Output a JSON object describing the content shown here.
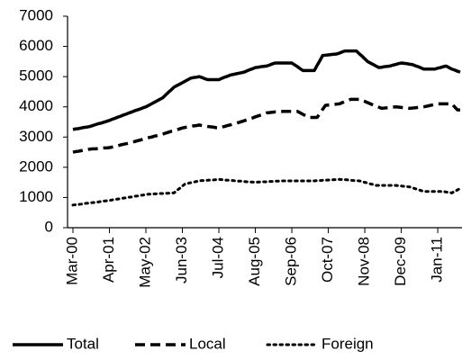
{
  "chart_data": {
    "type": "line",
    "categories": [
      "Mar-00",
      null,
      null,
      null,
      null,
      null,
      null,
      null,
      null,
      null,
      null,
      null,
      null,
      "Apr-01",
      null,
      null,
      null,
      null,
      null,
      null,
      null,
      null,
      null,
      null,
      null,
      null,
      "May-02",
      null,
      null,
      null,
      null,
      null,
      null,
      null,
      null,
      null,
      null,
      null,
      null,
      "Jun-03",
      null,
      null,
      null,
      null,
      null,
      null,
      null,
      null,
      null,
      null,
      null,
      null,
      "Jul-04",
      null,
      null,
      null,
      null,
      null,
      null,
      null,
      null,
      null,
      null,
      null,
      null,
      "Aug-05",
      null,
      null,
      null,
      null,
      null,
      null,
      null,
      null,
      null,
      null,
      null,
      null,
      "Sep-06",
      null,
      null,
      null,
      null,
      null,
      null,
      null,
      null,
      null,
      null,
      null,
      null,
      "Oct-07",
      null,
      null,
      null,
      null,
      null,
      null,
      null,
      null,
      null,
      null,
      null,
      null,
      "Nov-08",
      null,
      null,
      null,
      null,
      null,
      null,
      null,
      null,
      null,
      null,
      null,
      null,
      "Dec-09",
      null,
      null,
      null,
      null,
      null,
      null,
      null,
      null,
      null,
      null,
      null,
      null,
      "Jan-11",
      null,
      null,
      null,
      null,
      null,
      null,
      null,
      null
    ],
    "series": [
      {
        "name": "Total",
        "color": "#000000",
        "style": "solid",
        "values": [
          3250,
          3270,
          3280,
          3300,
          3320,
          3330,
          3350,
          3380,
          3410,
          3440,
          3460,
          3490,
          3520,
          3550,
          3590,
          3620,
          3660,
          3690,
          3730,
          3760,
          3800,
          3830,
          3870,
          3900,
          3930,
          3970,
          4000,
          4050,
          4100,
          4150,
          4200,
          4250,
          4300,
          4390,
          4480,
          4560,
          4650,
          4700,
          4750,
          4800,
          4850,
          4900,
          4950,
          4970,
          4980,
          5000,
          4970,
          4930,
          4900,
          4900,
          4900,
          4900,
          4900,
          4940,
          4980,
          5010,
          5050,
          5070,
          5090,
          5110,
          5130,
          5150,
          5190,
          5230,
          5260,
          5300,
          5310,
          5330,
          5340,
          5350,
          5380,
          5420,
          5450,
          5450,
          5450,
          5450,
          5450,
          5450,
          5450,
          5390,
          5330,
          5260,
          5200,
          5200,
          5200,
          5200,
          5200,
          5370,
          5530,
          5700,
          5710,
          5720,
          5730,
          5740,
          5750,
          5780,
          5820,
          5850,
          5850,
          5850,
          5850,
          5850,
          5760,
          5680,
          5590,
          5500,
          5450,
          5400,
          5350,
          5300,
          5310,
          5330,
          5340,
          5350,
          5380,
          5400,
          5430,
          5450,
          5440,
          5430,
          5410,
          5400,
          5360,
          5330,
          5290,
          5250,
          5250,
          5250,
          5250,
          5250,
          5280,
          5300,
          5330,
          5350,
          5300,
          5250,
          5220,
          5180,
          5150
        ]
      },
      {
        "name": "Local",
        "color": "#000000",
        "style": "dashed",
        "values": [
          2500,
          2520,
          2530,
          2550,
          2570,
          2580,
          2600,
          2610,
          2610,
          2620,
          2630,
          2640,
          2640,
          2650,
          2670,
          2690,
          2710,
          2740,
          2760,
          2780,
          2800,
          2830,
          2850,
          2880,
          2900,
          2930,
          2950,
          2980,
          3000,
          3030,
          3050,
          3080,
          3100,
          3130,
          3160,
          3190,
          3210,
          3240,
          3270,
          3300,
          3320,
          3330,
          3350,
          3370,
          3380,
          3400,
          3380,
          3370,
          3350,
          3340,
          3330,
          3310,
          3300,
          3330,
          3350,
          3380,
          3400,
          3430,
          3450,
          3480,
          3510,
          3540,
          3570,
          3600,
          3630,
          3670,
          3700,
          3730,
          3770,
          3800,
          3810,
          3820,
          3830,
          3830,
          3840,
          3850,
          3850,
          3850,
          3850,
          3850,
          3850,
          3800,
          3750,
          3700,
          3650,
          3650,
          3650,
          3650,
          3780,
          3920,
          4050,
          4060,
          4070,
          4080,
          4090,
          4100,
          4140,
          4180,
          4210,
          4250,
          4250,
          4250,
          4250,
          4210,
          4180,
          4140,
          4100,
          4060,
          4030,
          3990,
          3950,
          3960,
          3970,
          3980,
          3990,
          4000,
          3990,
          3980,
          3970,
          3960,
          3950,
          3960,
          3970,
          3980,
          3990,
          4000,
          4020,
          4040,
          4060,
          4080,
          4100,
          4100,
          4100,
          4100,
          4100,
          4100,
          4000,
          3900,
          3900
        ]
      },
      {
        "name": "Foreign",
        "color": "#000000",
        "style": "dotted",
        "values": [
          750,
          760,
          770,
          780,
          800,
          810,
          820,
          830,
          840,
          850,
          870,
          880,
          890,
          900,
          920,
          930,
          950,
          960,
          980,
          990,
          1010,
          1020,
          1040,
          1050,
          1070,
          1080,
          1100,
          1110,
          1110,
          1120,
          1120,
          1130,
          1130,
          1140,
          1140,
          1150,
          1150,
          1230,
          1300,
          1380,
          1450,
          1470,
          1490,
          1510,
          1530,
          1550,
          1560,
          1560,
          1570,
          1580,
          1580,
          1590,
          1600,
          1590,
          1580,
          1570,
          1570,
          1560,
          1550,
          1540,
          1540,
          1530,
          1520,
          1510,
          1510,
          1500,
          1510,
          1510,
          1520,
          1520,
          1530,
          1530,
          1540,
          1540,
          1550,
          1550,
          1550,
          1550,
          1550,
          1550,
          1550,
          1550,
          1550,
          1550,
          1550,
          1550,
          1550,
          1560,
          1560,
          1570,
          1570,
          1580,
          1580,
          1590,
          1590,
          1600,
          1590,
          1590,
          1580,
          1570,
          1560,
          1560,
          1550,
          1530,
          1500,
          1480,
          1450,
          1430,
          1400,
          1400,
          1400,
          1400,
          1400,
          1400,
          1400,
          1400,
          1390,
          1380,
          1370,
          1360,
          1350,
          1320,
          1290,
          1260,
          1230,
          1200,
          1200,
          1200,
          1200,
          1200,
          1200,
          1200,
          1200,
          1180,
          1170,
          1150,
          1200,
          1250,
          1300
        ]
      }
    ],
    "ylim": [
      0,
      7000
    ],
    "yticks": [
      0,
      1000,
      2000,
      3000,
      4000,
      5000,
      6000,
      7000
    ],
    "grid": false,
    "legend": "bottom"
  }
}
